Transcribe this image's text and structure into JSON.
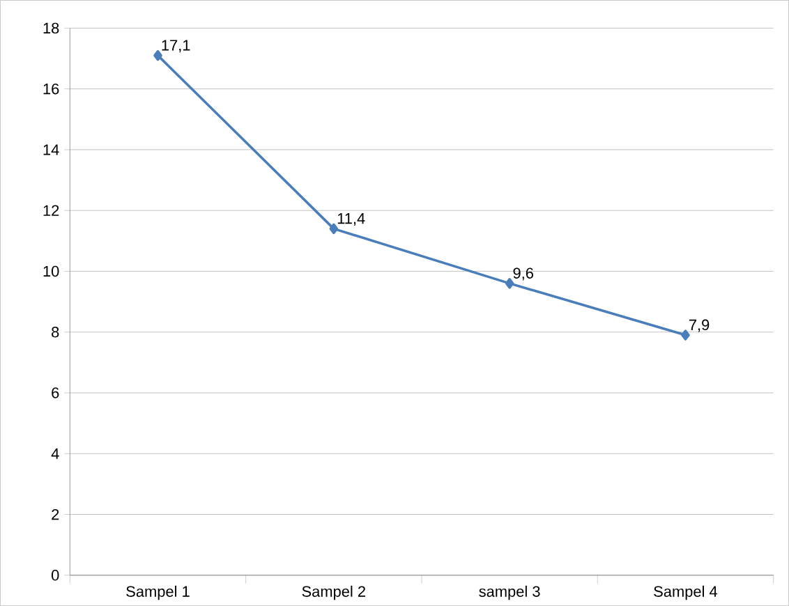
{
  "chart_data": {
    "type": "line",
    "categories": [
      "Sampel 1",
      "Sampel 2",
      "sampel 3",
      "Sampel 4"
    ],
    "values": [
      17.1,
      11.4,
      9.6,
      7.9
    ],
    "value_labels": [
      "17,1",
      "11,4",
      "9,6",
      "7,9"
    ],
    "color": "#4a7ebb",
    "marker": "diamond",
    "line_style": "solid",
    "ylim": [
      0,
      18
    ],
    "yticks": [
      0,
      2,
      4,
      6,
      8,
      10,
      12,
      14,
      16,
      18
    ],
    "grid": "y"
  }
}
